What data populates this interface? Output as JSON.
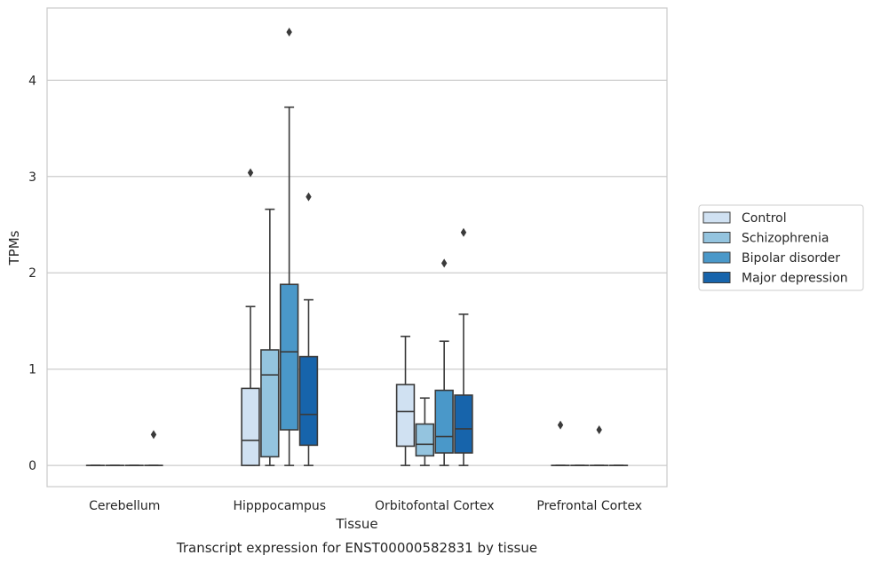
{
  "chart_data": {
    "type": "box",
    "title": "Transcript expression for ENST00000582831 by tissue",
    "xlabel": "Tissue",
    "ylabel": "TPMs",
    "ylim": [
      -0.22,
      4.75
    ],
    "yticks": [
      0,
      1,
      2,
      3,
      4
    ],
    "grid": "horizontal",
    "legend_position": "right",
    "categories": [
      "Cerebellum",
      "Hipppocampus",
      "Orbitofontal Cortex",
      "Prefrontal Cortex"
    ],
    "series": [
      {
        "name": "Control",
        "color": "#d0e1f2",
        "boxes": [
          {
            "min": 0,
            "q1": 0,
            "median": 0,
            "q3": 0,
            "max": 0,
            "outliers": []
          },
          {
            "min": 0,
            "q1": 0,
            "median": 0.26,
            "q3": 0.8,
            "max": 1.65,
            "outliers": [
              3.04
            ]
          },
          {
            "min": 0,
            "q1": 0.2,
            "median": 0.56,
            "q3": 0.84,
            "max": 1.34,
            "outliers": []
          },
          {
            "min": 0,
            "q1": 0,
            "median": 0,
            "q3": 0,
            "max": 0,
            "outliers": [
              0.42
            ]
          }
        ]
      },
      {
        "name": "Schizophrenia",
        "color": "#94c4df",
        "boxes": [
          {
            "min": 0,
            "q1": 0,
            "median": 0,
            "q3": 0,
            "max": 0,
            "outliers": []
          },
          {
            "min": 0,
            "q1": 0.09,
            "median": 0.94,
            "q3": 1.2,
            "max": 2.66,
            "outliers": []
          },
          {
            "min": 0,
            "q1": 0.1,
            "median": 0.22,
            "q3": 0.43,
            "max": 0.7,
            "outliers": []
          },
          {
            "min": 0,
            "q1": 0,
            "median": 0,
            "q3": 0,
            "max": 0,
            "outliers": []
          }
        ]
      },
      {
        "name": "Bipolar disorder",
        "color": "#4a98c9",
        "boxes": [
          {
            "min": 0,
            "q1": 0,
            "median": 0,
            "q3": 0,
            "max": 0,
            "outliers": []
          },
          {
            "min": 0,
            "q1": 0.37,
            "median": 1.18,
            "q3": 1.88,
            "max": 3.72,
            "outliers": [
              4.5
            ]
          },
          {
            "min": 0,
            "q1": 0.13,
            "median": 0.3,
            "q3": 0.78,
            "max": 1.29,
            "outliers": [
              2.1
            ]
          },
          {
            "min": 0,
            "q1": 0,
            "median": 0,
            "q3": 0,
            "max": 0,
            "outliers": [
              0.37
            ]
          }
        ]
      },
      {
        "name": "Major depression",
        "color": "#1764ab",
        "boxes": [
          {
            "min": 0,
            "q1": 0,
            "median": 0,
            "q3": 0,
            "max": 0,
            "outliers": [
              0.32
            ]
          },
          {
            "min": 0,
            "q1": 0.21,
            "median": 0.53,
            "q3": 1.13,
            "max": 1.72,
            "outliers": [
              2.79
            ]
          },
          {
            "min": 0,
            "q1": 0.13,
            "median": 0.38,
            "q3": 0.73,
            "max": 1.57,
            "outliers": [
              2.42
            ]
          },
          {
            "min": 0,
            "q1": 0,
            "median": 0,
            "q3": 0,
            "max": 0,
            "outliers": []
          }
        ]
      }
    ]
  }
}
